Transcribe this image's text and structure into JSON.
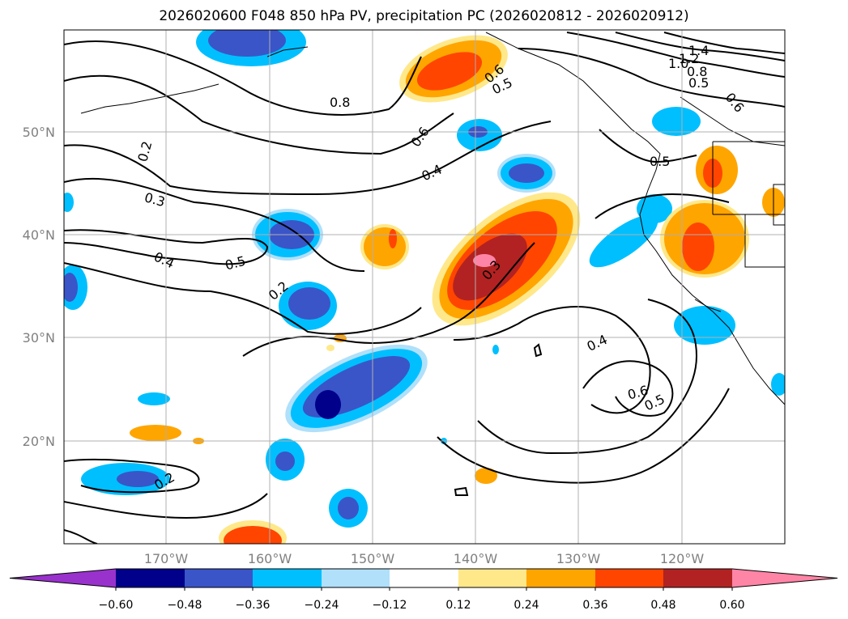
{
  "title": "2026020600 F048 850 hPa PV, precipitation PC (2026020812 - 2026020912)",
  "lat_labels": [
    "50°N",
    "40°N",
    "30°N",
    "20°N"
  ],
  "lon_labels": [
    "170°W",
    "160°W",
    "150°W",
    "140°W",
    "130°W",
    "120°W"
  ],
  "contour_labels": [
    "0.2",
    "0.3",
    "0.4",
    "0.5",
    "0.2",
    "0.8",
    "0.6",
    "0.5",
    "0.6",
    "0.4",
    "0.3",
    "1.4",
    "1.2",
    "1.0",
    "0.8",
    "0.5",
    "0.6",
    "0.5",
    "0.4",
    "0.6",
    "0.5",
    "0.2"
  ],
  "colorbar": {
    "ticks": [
      "−0.60",
      "−0.48",
      "−0.36",
      "−0.24",
      "−0.12",
      "0.12",
      "0.24",
      "0.36",
      "0.48",
      "0.60"
    ],
    "colors": [
      "#9932cc",
      "#00008b",
      "#3a55c8",
      "#00bfff",
      "#b0e0fa",
      "#ffffff",
      "#ffe88a",
      "#ffa500",
      "#ff4500",
      "#b22222",
      "#ff85a6"
    ]
  },
  "chart_data": {
    "type": "heatmap",
    "variable_contours": "850 hPa PV",
    "variable_shading": "precipitation PC",
    "lat_range": [
      "10°N",
      "60°N"
    ],
    "lon_range": [
      "180°W",
      "110°W"
    ],
    "levels": [
      -0.6,
      -0.48,
      -0.36,
      -0.24,
      -0.12,
      0.12,
      0.24,
      0.36,
      0.48,
      0.6
    ],
    "grid": true
  }
}
